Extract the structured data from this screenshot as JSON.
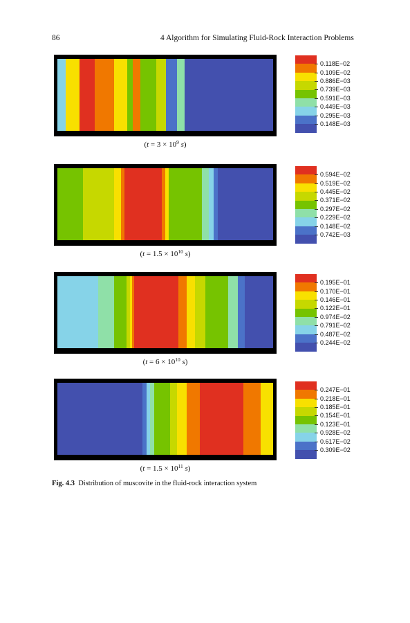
{
  "header": {
    "page_number": "86",
    "running_title": "4   Algorithm for Simulating Fluid-Rock Interaction Problems"
  },
  "figure": {
    "label": "Fig. 4.3",
    "caption": "Distribution of muscovite in the fluid-rock interaction system"
  },
  "colorscale": [
    "#4350ae",
    "#4b72c8",
    "#86d3e8",
    "#8fe0a8",
    "#76c300",
    "#c6d800",
    "#f8e000",
    "#f07800",
    "#e03020"
  ],
  "panels": [
    {
      "caption": {
        "pre": "(",
        "t": "t",
        "mid": " = 3 × 10",
        "exp": "9",
        "s": "s",
        "post": ")"
      },
      "legend": [
        "0.118E−02",
        "0.109E−02",
        "0.886E−03",
        "0.739E−03",
        "0.591E−03",
        "0.449E−03",
        "0.295E−03",
        "0.148E−03"
      ],
      "bands": [
        [
          8,
          2
        ],
        [
          4,
          6
        ],
        [
          10,
          6
        ],
        [
          15,
          8
        ],
        [
          19,
          7
        ],
        [
          13,
          6
        ],
        [
          6,
          4
        ],
        [
          7,
          7
        ],
        [
          16,
          4
        ],
        [
          10,
          5
        ],
        [
          11,
          1
        ],
        [
          7,
          3
        ],
        [
          88,
          0
        ]
      ]
    },
    {
      "caption": {
        "pre": "(",
        "t": "t",
        "mid": " = 1.5 × 10",
        "exp": "10",
        "s": "s",
        "post": ")"
      },
      "legend": [
        "0.594E−02",
        "0.519E−02",
        "0.445E−02",
        "0.371E−02",
        "0.297E−02",
        "0.229E−02",
        "0.148E−02",
        "0.742E−03"
      ],
      "bands": [
        [
          37,
          4
        ],
        [
          45,
          5
        ],
        [
          10,
          6
        ],
        [
          5,
          7
        ],
        [
          4,
          8
        ],
        [
          50,
          8
        ],
        [
          5,
          7
        ],
        [
          5,
          6
        ],
        [
          48,
          4
        ],
        [
          10,
          3
        ],
        [
          7,
          2
        ],
        [
          6,
          1
        ],
        [
          80,
          0
        ]
      ]
    },
    {
      "caption": {
        "pre": "(",
        "t": "t",
        "mid": " = 6 × 10",
        "exp": "10",
        "s": "s",
        "post": ")"
      },
      "legend": [
        "0.195E−01",
        "0.170E−01",
        "0.146E−01",
        "0.122E−01",
        "0.974E−02",
        "0.791E−02",
        "0.487E−02",
        "0.244E−02"
      ],
      "bands": [
        [
          58,
          2
        ],
        [
          22,
          3
        ],
        [
          18,
          4
        ],
        [
          5,
          5
        ],
        [
          3,
          6
        ],
        [
          3,
          7
        ],
        [
          62,
          8
        ],
        [
          12,
          7
        ],
        [
          12,
          6
        ],
        [
          14,
          5
        ],
        [
          32,
          4
        ],
        [
          14,
          3
        ],
        [
          10,
          1
        ],
        [
          40,
          0
        ]
      ]
    },
    {
      "caption": {
        "pre": "(",
        "t": "t",
        "mid": " = 1.5 × 10",
        "exp": "11",
        "s": "s",
        "post": ")"
      },
      "legend": [
        "0.247E−01",
        "0.218E−01",
        "0.185E−01",
        "0.154E−01",
        "0.123E−01",
        "0.928E−02",
        "0.617E−02",
        "0.309E−02"
      ],
      "bands": [
        [
          120,
          0
        ],
        [
          6,
          1
        ],
        [
          5,
          2
        ],
        [
          6,
          3
        ],
        [
          22,
          4
        ],
        [
          10,
          5
        ],
        [
          14,
          6
        ],
        [
          18,
          7
        ],
        [
          62,
          8
        ],
        [
          24,
          7
        ],
        [
          18,
          6
        ]
      ]
    }
  ]
}
